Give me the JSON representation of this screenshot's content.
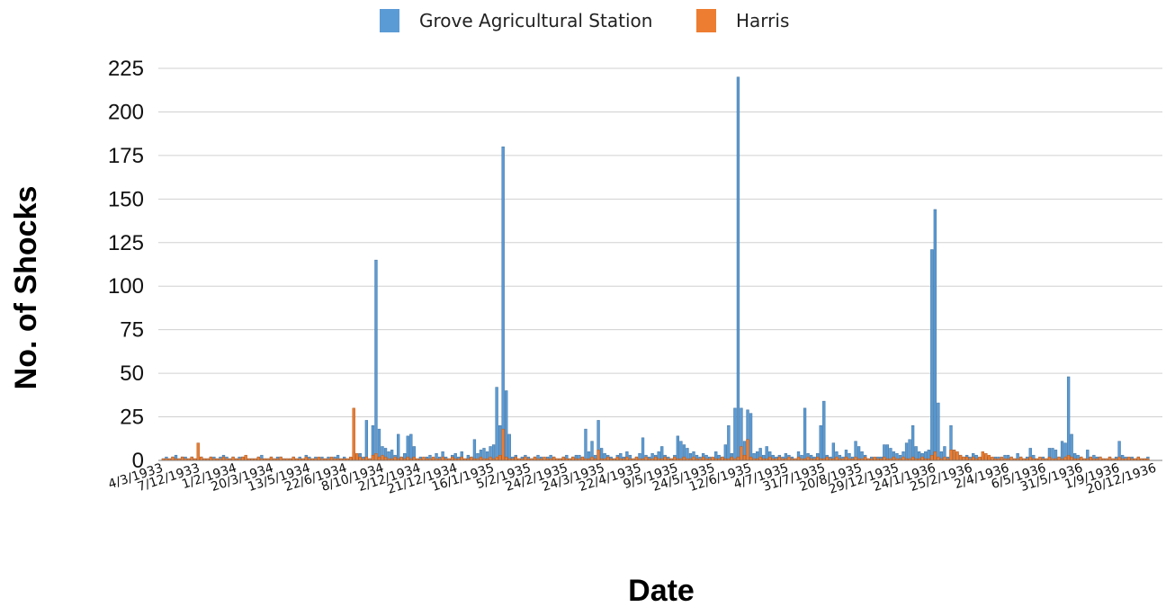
{
  "chart_data": {
    "type": "bar",
    "xlabel": "Date",
    "ylabel": "No. of Shocks",
    "ylim": [
      0,
      225
    ],
    "yticks": [
      0,
      25,
      50,
      75,
      100,
      125,
      150,
      175,
      200,
      225
    ],
    "grid": true,
    "legend_position": "top",
    "colors": {
      "grove": "#5b9bd5",
      "grove_edge": "#41719c",
      "harris": "#ed7d31",
      "harris_edge": "#ae5a21",
      "grid": "#d0d0d0",
      "axis": "#808080"
    },
    "x_tick_labels": [
      "4/3/1933",
      "7/12/1933",
      "1/2/1934",
      "20/3/1934",
      "13/5/1934",
      "22/6/1934",
      "8/10/1934",
      "2/12/1934",
      "21/12/1934",
      "16/1/1935",
      "5/2/1935",
      "24/2/1935",
      "24/3/1935",
      "22/4/1935",
      "9/5/1935",
      "24/5/1935",
      "12/6/1935",
      "4/7/1935",
      "31/7/1935",
      "20/8/1935",
      "29/12/1935",
      "24/1/1936",
      "25/2/1936",
      "2/4/1936",
      "6/5/1936",
      "31/5/1936",
      "1/9/1936",
      "20/12/1936"
    ],
    "series": [
      {
        "name": "Grove Agricultural Station",
        "color": "#5b9bd5",
        "values": [
          1,
          2,
          1,
          2,
          3,
          1,
          2,
          2,
          1,
          2,
          1,
          1,
          2,
          1,
          1,
          2,
          2,
          1,
          2,
          3,
          2,
          1,
          2,
          1,
          2,
          2,
          1,
          1,
          1,
          1,
          2,
          3,
          1,
          1,
          2,
          1,
          2,
          2,
          1,
          1,
          1,
          2,
          1,
          2,
          1,
          3,
          2,
          1,
          2,
          1,
          2,
          1,
          2,
          1,
          2,
          3,
          1,
          2,
          1,
          1,
          5,
          3,
          4,
          2,
          23,
          1,
          20,
          115,
          18,
          8,
          7,
          5,
          6,
          3,
          15,
          2,
          4,
          14,
          15,
          8,
          1,
          2,
          1,
          2,
          3,
          1,
          4,
          2,
          5,
          2,
          1,
          3,
          4,
          2,
          5,
          1,
          3,
          2,
          12,
          4,
          6,
          7,
          5,
          8,
          9,
          42,
          20,
          180,
          40,
          15,
          2,
          3,
          1,
          2,
          3,
          2,
          1,
          2,
          3,
          2,
          1,
          2,
          3,
          2,
          1,
          1,
          2,
          3,
          1,
          2,
          3,
          3,
          2,
          18,
          5,
          11,
          3,
          23,
          7,
          4,
          3,
          2,
          1,
          3,
          4,
          2,
          5,
          3,
          1,
          2,
          4,
          13,
          3,
          2,
          4,
          3,
          5,
          8,
          3,
          2,
          1,
          3,
          14,
          11,
          9,
          7,
          4,
          5,
          3,
          2,
          4,
          3,
          2,
          1,
          5,
          3,
          2,
          9,
          20,
          4,
          30,
          220,
          30,
          11,
          29,
          27,
          4,
          5,
          7,
          3,
          8,
          5,
          3,
          2,
          3,
          2,
          4,
          3,
          2,
          1,
          5,
          3,
          30,
          4,
          3,
          2,
          4,
          20,
          34,
          3,
          2,
          10,
          5,
          3,
          2,
          6,
          4,
          2,
          11,
          8,
          5,
          3,
          1,
          2,
          1,
          2,
          2,
          9,
          9,
          7,
          5,
          4,
          3,
          5,
          10,
          12,
          20,
          8,
          5,
          4,
          5,
          6,
          121,
          144,
          33,
          5,
          8,
          2,
          20,
          6,
          4,
          3,
          2,
          3,
          2,
          4,
          3,
          1,
          2,
          3,
          2,
          1,
          2,
          2,
          1,
          3,
          3,
          2,
          1,
          4,
          2,
          1,
          2,
          7,
          3,
          1,
          1,
          2,
          1,
          7,
          7,
          6,
          2,
          11,
          10,
          48,
          15,
          4,
          3,
          2,
          1,
          6,
          2,
          3,
          2,
          2,
          1,
          1,
          2,
          1,
          2,
          11,
          3,
          2,
          1,
          2,
          1,
          2,
          1,
          1,
          2
        ]
      },
      {
        "name": "Harris",
        "color": "#ed7d31",
        "values": [
          1,
          1,
          1,
          2,
          1,
          1,
          2,
          1,
          1,
          2,
          1,
          10,
          2,
          1,
          1,
          2,
          1,
          1,
          1,
          2,
          1,
          1,
          2,
          1,
          1,
          2,
          3,
          1,
          1,
          1,
          2,
          1,
          1,
          1,
          2,
          1,
          1,
          2,
          1,
          1,
          1,
          2,
          1,
          1,
          1,
          2,
          1,
          1,
          1,
          2,
          1,
          1,
          1,
          2,
          1,
          1,
          1,
          1,
          1,
          2,
          30,
          4,
          2,
          1,
          2,
          1,
          3,
          4,
          2,
          3,
          2,
          1,
          1,
          2,
          1,
          2,
          1,
          2,
          1,
          2,
          1,
          1,
          2,
          1,
          1,
          2,
          1,
          1,
          2,
          1,
          1,
          2,
          1,
          1,
          2,
          1,
          1,
          2,
          1,
          1,
          2,
          1,
          1,
          2,
          1,
          2,
          3,
          18,
          2,
          1,
          1,
          2,
          1,
          1,
          2,
          1,
          1,
          2,
          1,
          1,
          2,
          1,
          1,
          2,
          1,
          1,
          2,
          1,
          1,
          2,
          1,
          1,
          2,
          1,
          1,
          2,
          1,
          6,
          1,
          1,
          2,
          1,
          1,
          2,
          1,
          1,
          2,
          1,
          1,
          2,
          1,
          1,
          2,
          1,
          1,
          2,
          1,
          1,
          2,
          1,
          1,
          2,
          1,
          1,
          2,
          1,
          1,
          2,
          1,
          1,
          2,
          1,
          1,
          2,
          1,
          1,
          2,
          1,
          1,
          2,
          1,
          2,
          8,
          3,
          12,
          2,
          1,
          1,
          2,
          1,
          1,
          2,
          1,
          1,
          2,
          1,
          1,
          2,
          1,
          1,
          2,
          1,
          1,
          2,
          1,
          1,
          2,
          1,
          1,
          2,
          1,
          1,
          2,
          1,
          1,
          2,
          1,
          1,
          2,
          1,
          1,
          2,
          1,
          1,
          2,
          1,
          1,
          2,
          1,
          1,
          2,
          1,
          1,
          2,
          1,
          1,
          2,
          1,
          1,
          2,
          1,
          1,
          3,
          5,
          2,
          1,
          2,
          1,
          6,
          6,
          5,
          3,
          2,
          2,
          1,
          2,
          1,
          2,
          5,
          4,
          3,
          2,
          1,
          1,
          2,
          1,
          1,
          2,
          1,
          1,
          2,
          1,
          1,
          2,
          1,
          1,
          2,
          1,
          1,
          2,
          1,
          1,
          2,
          1,
          2,
          3,
          2,
          1,
          1,
          2,
          1,
          1,
          2,
          1,
          1,
          2,
          1,
          1,
          2,
          1,
          1,
          2,
          1,
          1,
          2,
          1,
          1,
          2,
          1,
          1,
          1
        ]
      }
    ]
  }
}
